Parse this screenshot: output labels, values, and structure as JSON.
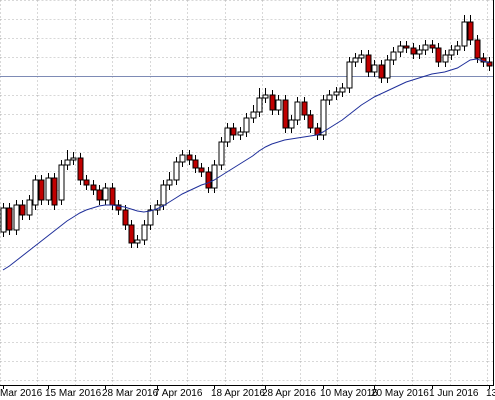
{
  "chart_data": {
    "type": "candlestick",
    "categories": [
      "Mar 2016",
      null,
      null,
      null,
      null,
      null,
      null,
      "15 Mar 2016",
      null,
      null,
      null,
      null,
      null,
      null,
      null,
      null,
      "28 Mar 2016",
      null,
      null,
      null,
      null,
      null,
      null,
      null,
      "7 Apr 2016",
      null,
      null,
      null,
      null,
      null,
      null,
      null,
      null,
      "18 Apr 2016",
      null,
      null,
      null,
      null,
      null,
      null,
      null,
      "28 Apr 2016",
      null,
      null,
      null,
      null,
      null,
      null,
      null,
      null,
      "10 May 2016",
      null,
      null,
      null,
      null,
      null,
      null,
      null,
      "20 May 2016",
      null,
      null,
      null,
      null,
      null,
      null,
      null,
      null,
      "1 Jun 2016",
      null,
      null,
      null,
      null,
      null,
      null,
      null,
      null,
      "13"
    ],
    "open": [
      168,
      192,
      170,
      195,
      185,
      195,
      220,
      200,
      222,
      200,
      235,
      240,
      242,
      220,
      215,
      210,
      200,
      212,
      195,
      190,
      175,
      157,
      160,
      175,
      190,
      195,
      215,
      220,
      238,
      245,
      240,
      232,
      228,
      212,
      235,
      258,
      272,
      265,
      268,
      282,
      288,
      302,
      305,
      290,
      300,
      272,
      280,
      298,
      285,
      272,
      265,
      300,
      305,
      308,
      312,
      338,
      342,
      345,
      328,
      335,
      322,
      340,
      348,
      354,
      352,
      346,
      350,
      355,
      352,
      338,
      345,
      350,
      354,
      378,
      360,
      342,
      338
    ],
    "high": [
      197,
      197,
      200,
      200,
      205,
      225,
      225,
      227,
      227,
      240,
      250,
      248,
      247,
      225,
      220,
      215,
      217,
      217,
      200,
      195,
      180,
      165,
      180,
      195,
      200,
      220,
      228,
      243,
      250,
      250,
      245,
      237,
      233,
      240,
      263,
      277,
      277,
      273,
      287,
      295,
      312,
      312,
      310,
      305,
      305,
      285,
      303,
      303,
      290,
      277,
      305,
      310,
      313,
      317,
      343,
      347,
      350,
      350,
      340,
      340,
      345,
      353,
      359,
      359,
      357,
      355,
      360,
      360,
      357,
      350,
      355,
      359,
      385,
      385,
      365,
      347,
      343
    ],
    "low": [
      163,
      165,
      165,
      180,
      180,
      190,
      195,
      195,
      190,
      195,
      230,
      235,
      215,
      210,
      205,
      195,
      195,
      190,
      185,
      170,
      152,
      152,
      155,
      170,
      185,
      190,
      210,
      215,
      233,
      235,
      227,
      223,
      207,
      207,
      230,
      253,
      260,
      260,
      263,
      277,
      283,
      297,
      285,
      285,
      267,
      267,
      275,
      280,
      267,
      260,
      260,
      295,
      300,
      303,
      307,
      333,
      337,
      323,
      323,
      317,
      317,
      335,
      343,
      347,
      341,
      341,
      345,
      347,
      333,
      333,
      340,
      345,
      349,
      355,
      337,
      333,
      329
    ],
    "close": [
      192,
      170,
      195,
      185,
      200,
      220,
      200,
      222,
      195,
      235,
      240,
      242,
      220,
      215,
      210,
      200,
      212,
      195,
      190,
      175,
      157,
      160,
      175,
      190,
      195,
      215,
      220,
      238,
      245,
      240,
      232,
      228,
      212,
      235,
      258,
      272,
      265,
      268,
      282,
      288,
      302,
      305,
      290,
      300,
      272,
      280,
      298,
      285,
      272,
      265,
      300,
      305,
      308,
      312,
      338,
      342,
      345,
      328,
      335,
      322,
      340,
      348,
      354,
      352,
      346,
      350,
      355,
      352,
      338,
      345,
      350,
      354,
      378,
      360,
      342,
      338,
      334
    ],
    "up_color": "#ffffff",
    "down_color": "#c00000",
    "overlay": {
      "color": "#1f2f9a",
      "values": [
        130,
        134,
        139,
        144,
        149,
        154,
        159,
        164,
        169,
        174,
        179,
        183,
        187,
        190,
        192,
        194,
        195,
        195,
        194,
        193,
        191,
        189,
        188,
        189,
        191,
        194,
        198,
        202,
        206,
        209,
        212,
        215,
        217,
        220,
        224,
        228,
        232,
        236,
        240,
        244,
        249,
        253,
        256,
        258,
        260,
        261,
        262,
        263,
        264,
        265,
        268,
        272,
        276,
        280,
        285,
        290,
        295,
        299,
        303,
        306,
        309,
        312,
        315,
        318,
        320,
        322,
        324,
        326,
        327,
        328,
        330,
        332,
        336,
        340,
        341,
        339,
        337
      ]
    },
    "hline": {
      "value": 324,
      "color": "#7e8bb5"
    },
    "ylim": [
      15,
      400
    ],
    "grid": true
  }
}
